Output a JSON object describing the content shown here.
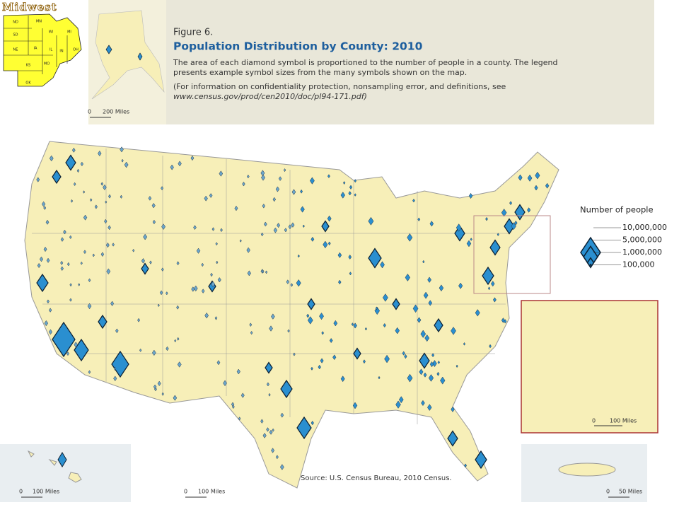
{
  "inset": {
    "title": "Midwest",
    "states": [
      "ND",
      "MN",
      "WI",
      "MI",
      "SD",
      "NE",
      "IA",
      "IL",
      "IN",
      "OH",
      "KS",
      "MO",
      "OK"
    ]
  },
  "header": {
    "figure": "Figure 6.",
    "title": "Population Distribution by County: 2010",
    "description": [
      "The area of each diamond symbol is proportioned to the number of people in a county. The legend",
      "presents example symbol sizes from the many symbols shown on the map."
    ],
    "note": [
      "(For information on confidentiality protection, nonsampling error, and definitions, see",
      "www.census.gov/prod/cen2010/doc/pl94-171.pdf)"
    ]
  },
  "legend": {
    "title": "Number of people",
    "items": [
      {
        "value": 10000000,
        "label": "10,000,000"
      },
      {
        "value": 5000000,
        "label": "5,000,000"
      },
      {
        "value": 1000000,
        "label": "1,000,000"
      },
      {
        "value": 100000,
        "label": "100,000"
      }
    ]
  },
  "scales": {
    "zero": "0",
    "alaska": "200 Miles",
    "hawaii": "100 Miles",
    "main": "100 Miles",
    "northeast": "100 Miles",
    "puerto_rico": "50 Miles"
  },
  "source": "Source: U.S. Census Bureau, 2010 Census."
}
